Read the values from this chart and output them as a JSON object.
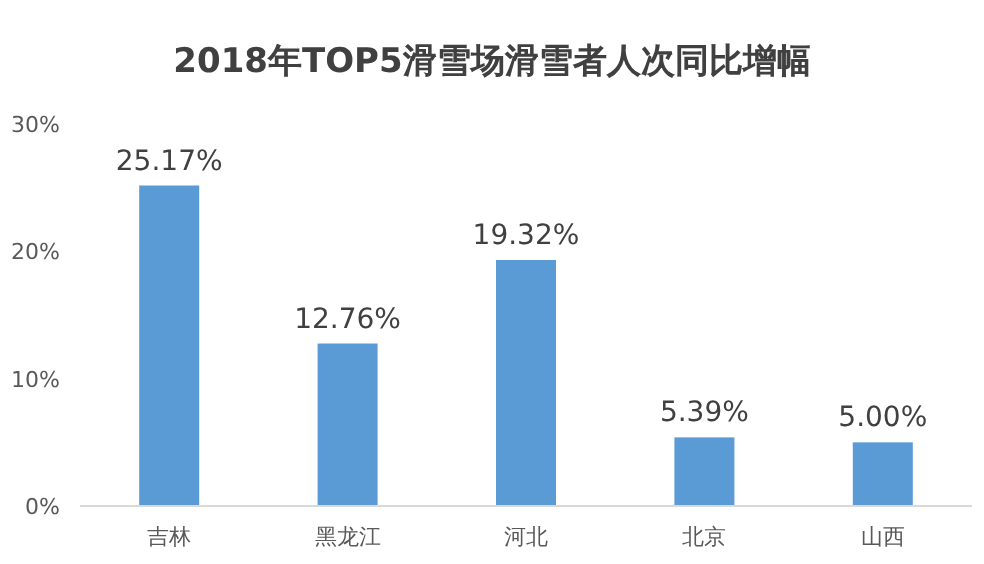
{
  "chart_data": {
    "type": "bar",
    "title": "2018年TOP5滑雪场滑雪者人次同比增幅",
    "categories": [
      "吉林",
      "黑龙江",
      "河北",
      "北京",
      "山西"
    ],
    "values": [
      25.17,
      12.76,
      19.32,
      5.39,
      5.0
    ],
    "value_labels": [
      "25.17%",
      "12.76%",
      "19.32%",
      "5.39%",
      "5.00%"
    ],
    "color": "#5b9bd5",
    "ylim": [
      0,
      30
    ],
    "yticks": [
      {
        "value": 0,
        "label": "0%"
      },
      {
        "value": 10,
        "label": "10%"
      },
      {
        "value": 20,
        "label": "20%"
      },
      {
        "value": 30,
        "label": "30%"
      }
    ],
    "grid": false
  }
}
